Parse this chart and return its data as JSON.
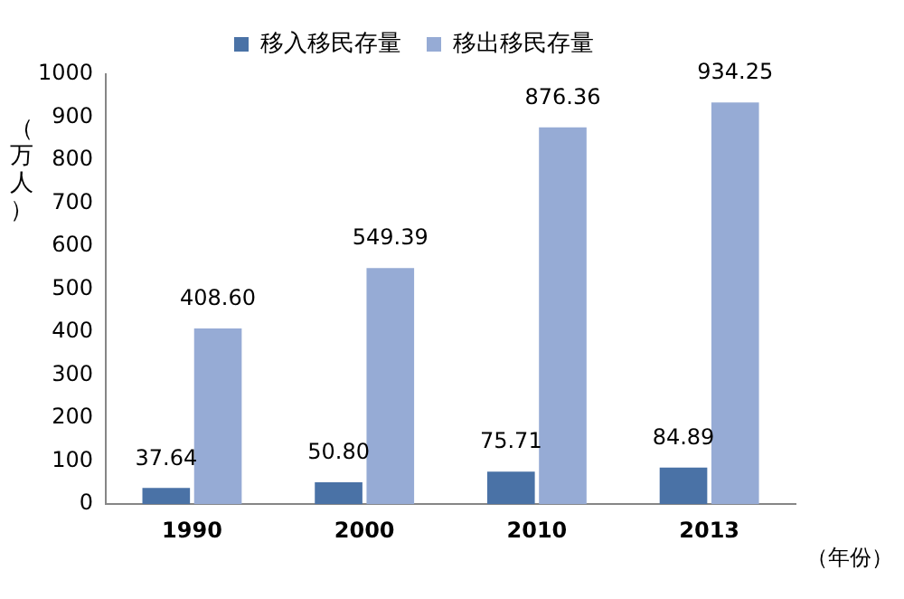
{
  "chart_data": {
    "type": "bar",
    "ylabel": "（万人）",
    "xlabel": "（年份）",
    "categories": [
      "1990",
      "2000",
      "2010",
      "2013"
    ],
    "series": [
      {
        "name": "移入移民存量",
        "color": "#4a72a6",
        "values": [
          37.64,
          50.8,
          75.71,
          84.89
        ],
        "value_labels": [
          "37.64",
          "50.80",
          "75.71",
          "84.89"
        ]
      },
      {
        "name": "移出移民存量",
        "color": "#96abd5",
        "values": [
          408.6,
          549.39,
          876.36,
          934.25
        ],
        "value_labels": [
          "408.60",
          "549.39",
          "876.36",
          "934.25"
        ]
      }
    ],
    "ylim": [
      0,
      1000
    ],
    "yticks": [
      0,
      100,
      200,
      300,
      400,
      500,
      600,
      700,
      800,
      900,
      1000
    ],
    "grid": false,
    "legend": "top"
  }
}
